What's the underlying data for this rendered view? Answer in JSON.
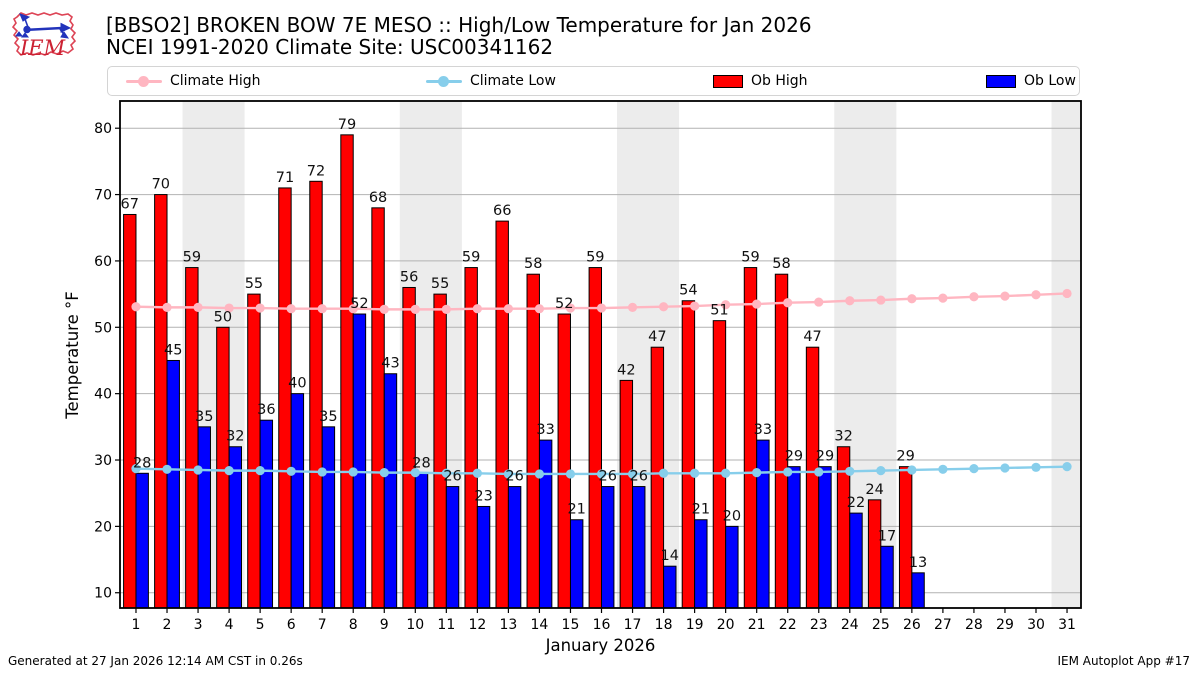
{
  "header": {
    "title": "[BBSO2] BROKEN BOW 7E MESO :: High/Low Temperature for Jan 2026",
    "subtitle": "NCEI 1991-2020 Climate Site: USC00341162",
    "logo_text": "IEM"
  },
  "legend": {
    "items": [
      {
        "label": "Climate High",
        "marker": "line-dot",
        "color": "#ffb6c1"
      },
      {
        "label": "Climate Low",
        "marker": "line-dot",
        "color": "#87ceeb"
      },
      {
        "label": "Ob High",
        "marker": "swatch",
        "color": "#ff0000"
      },
      {
        "label": "Ob Low",
        "marker": "swatch",
        "color": "#0000ff"
      }
    ]
  },
  "footer": {
    "left": "Generated at 27 Jan 2026 12:14 AM CST in 0.26s",
    "right": "IEM Autoplot App #17"
  },
  "chart_data": {
    "type": "bar",
    "title": "[BBSO2] BROKEN BOW 7E MESO :: High/Low Temperature for Jan 2026",
    "xlabel": "January 2026",
    "ylabel": "Temperature °F",
    "x": [
      1,
      2,
      3,
      4,
      5,
      6,
      7,
      8,
      9,
      10,
      11,
      12,
      13,
      14,
      15,
      16,
      17,
      18,
      19,
      20,
      21,
      22,
      23,
      24,
      25,
      26,
      27,
      28,
      29,
      30,
      31
    ],
    "series": [
      {
        "name": "Ob High",
        "type": "bar",
        "color": "#ff0000",
        "values": [
          67,
          70,
          59,
          50,
          55,
          71,
          72,
          79,
          68,
          56,
          55,
          59,
          66,
          58,
          52,
          59,
          42,
          47,
          54,
          51,
          59,
          58,
          47,
          32,
          24,
          29,
          null,
          null,
          null,
          null,
          null
        ]
      },
      {
        "name": "Ob Low",
        "type": "bar",
        "color": "#0000ff",
        "values": [
          28,
          45,
          35,
          32,
          36,
          40,
          35,
          52,
          43,
          28,
          26,
          23,
          26,
          33,
          21,
          26,
          26,
          14,
          21,
          20,
          33,
          29,
          29,
          22,
          17,
          13,
          null,
          null,
          null,
          null,
          null
        ]
      },
      {
        "name": "Climate High",
        "type": "line",
        "color": "#ffb6c1",
        "values": [
          53.1,
          53.0,
          53.0,
          52.9,
          52.9,
          52.8,
          52.8,
          52.8,
          52.7,
          52.7,
          52.7,
          52.8,
          52.8,
          52.8,
          52.9,
          52.9,
          53.0,
          53.1,
          53.2,
          53.4,
          53.5,
          53.7,
          53.8,
          54.0,
          54.1,
          54.3,
          54.4,
          54.6,
          54.7,
          54.9,
          55.1
        ]
      },
      {
        "name": "Climate Low",
        "type": "line",
        "color": "#87ceeb",
        "values": [
          28.7,
          28.6,
          28.5,
          28.4,
          28.4,
          28.3,
          28.2,
          28.2,
          28.1,
          28.1,
          28.0,
          28.0,
          27.9,
          27.9,
          27.9,
          27.9,
          27.9,
          28.0,
          28.0,
          28.0,
          28.1,
          28.2,
          28.2,
          28.3,
          28.4,
          28.5,
          28.6,
          28.7,
          28.8,
          28.9,
          29.0
        ]
      }
    ],
    "yticks": [
      10,
      20,
      30,
      40,
      50,
      60,
      70,
      80
    ],
    "xticks": [
      1,
      2,
      3,
      4,
      5,
      6,
      7,
      8,
      9,
      10,
      11,
      12,
      13,
      14,
      15,
      16,
      17,
      18,
      19,
      20,
      21,
      22,
      23,
      24,
      25,
      26,
      27,
      28,
      29,
      30,
      31
    ],
    "ylim": [
      7.7,
      84.1
    ],
    "xlim": [
      0.485,
      31.45
    ],
    "weekend_bands": [
      [
        2.5,
        4.5
      ],
      [
        9.5,
        11.5
      ],
      [
        16.5,
        18.5
      ],
      [
        23.5,
        25.5
      ],
      [
        30.5,
        31.45
      ]
    ],
    "bar_width_days": 0.4,
    "grid": true,
    "legend_position": "top",
    "colors": {
      "band": "#ececec",
      "grid": "#b2b2b2",
      "frame": "#000000",
      "label": "#111111"
    }
  }
}
